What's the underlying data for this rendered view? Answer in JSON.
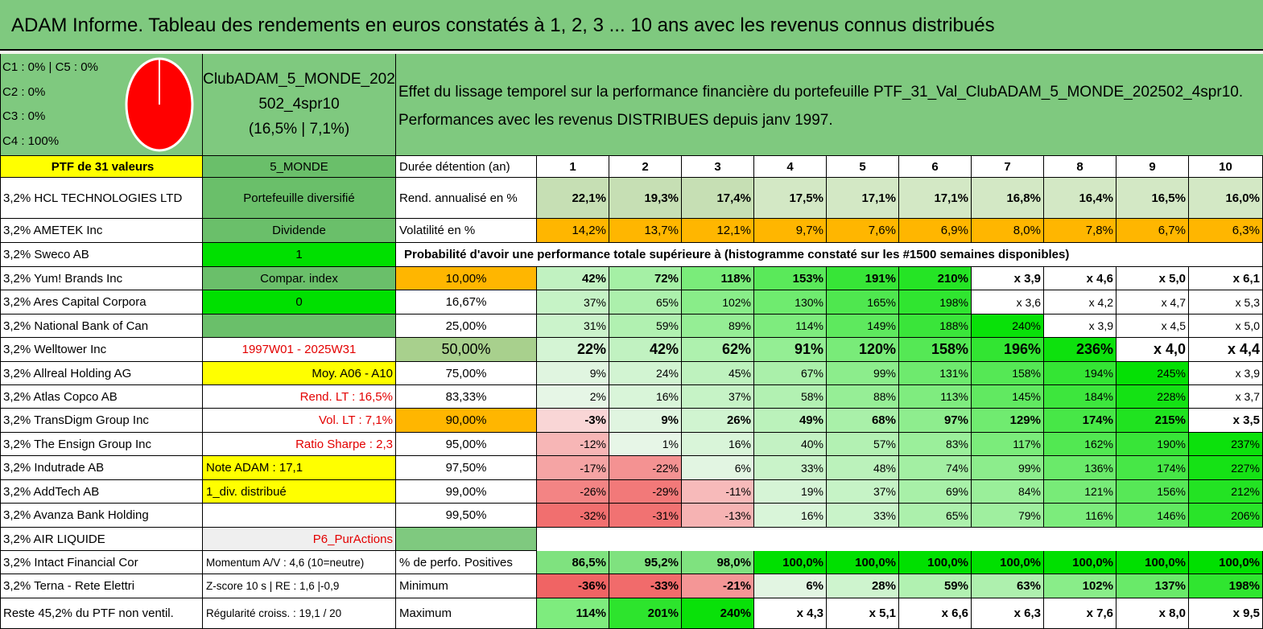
{
  "title": "ADAM Informe. Tableau des rendements en euros constatés à 1, 2, 3 ... 10 ans avec les revenus connus distribués",
  "allocation": [
    "C1 : 0% | C5 : 0%",
    "C2 : 0%",
    "C3 : 0%",
    "C4 : 100%"
  ],
  "pie": {
    "C4": 100,
    "color": "#ff0000"
  },
  "fund": {
    "line1": "ClubADAM_5_MONDE_202",
    "line2": "502_4spr10",
    "line3": "(16,5% | 7,1%)"
  },
  "description": {
    "line1": "Effet du lissage temporel sur la performance financière du portefeuille PTF_31_Val_ClubADAM_5_MONDE_202502_4spr10.",
    "line2": "Performances avec les revenus DISTRIBUES depuis janv 1997."
  },
  "holdings": [
    "PTF de 31 valeurs",
    "3,2% HCL TECHNOLOGIES LTD",
    "3,2% AMETEK Inc",
    "3,2% Sweco AB",
    "3,2% Yum! Brands Inc",
    "3,2% Ares Capital Corpora",
    "3,2% National Bank of Can",
    "3,2% Welltower Inc",
    "3,2% Allreal Holding AG",
    "3,2% Atlas Copco AB",
    "3,2% TransDigm Group Inc",
    "3,2% The Ensign Group Inc",
    "3,2% Indutrade AB",
    "3,2% AddTech AB",
    "3,2% Avanza Bank Holding",
    "3,2% AIR LIQUIDE",
    "3,2% Intact Financial Cor",
    "3,2% Terna - Rete Elettri",
    "Reste 45,2% du PTF non ventil."
  ],
  "details": [
    "5_MONDE",
    "Portefeuille diversifié",
    "Dividende",
    "1",
    "Compar. index",
    "0",
    "",
    "1997W01 - 2025W31",
    "Moy. A06 - A10",
    "Rend. LT : 16,5%",
    "Vol. LT : 7,1%",
    "Ratio Sharpe : 2,3",
    "Note ADAM : 17,1",
    "1_div. distribué",
    "",
    "P6_PurActions",
    "Momentum A/V : 4,6 (10=neutre)",
    "Z-score 10 s | RE : 1,6 |-0,9",
    "Régularité croiss. : 19,1 / 20"
  ],
  "header": {
    "label": "Durée détention (an)",
    "years": [
      "1",
      "2",
      "3",
      "4",
      "5",
      "6",
      "7",
      "8",
      "9",
      "10"
    ]
  },
  "rend": {
    "label": "Rend. annualisé en %",
    "values": [
      "22,1%",
      "19,3%",
      "17,4%",
      "17,5%",
      "17,1%",
      "17,1%",
      "16,8%",
      "16,4%",
      "16,5%",
      "16,0%"
    ]
  },
  "vol": {
    "label": "Volatilité en %",
    "values": [
      "14,2%",
      "13,7%",
      "12,1%",
      "9,7%",
      "7,6%",
      "6,9%",
      "8,0%",
      "7,8%",
      "6,7%",
      "6,3%"
    ]
  },
  "proba_title": "Probabilité d'avoir une performance totale supérieure à (histogramme constaté sur les #1500 semaines disponibles)",
  "proba_rows": [
    {
      "pct": "10,00%",
      "values": [
        "42%",
        "72%",
        "118%",
        "153%",
        "191%",
        "210%",
        "x 3,9",
        "x 4,6",
        "x 5,0",
        "x 6,1"
      ]
    },
    {
      "pct": "16,67%",
      "values": [
        "37%",
        "65%",
        "102%",
        "130%",
        "165%",
        "198%",
        "x 3,6",
        "x 4,2",
        "x 4,7",
        "x 5,3"
      ]
    },
    {
      "pct": "25,00%",
      "values": [
        "31%",
        "59%",
        "89%",
        "114%",
        "149%",
        "188%",
        "240%",
        "x 3,9",
        "x 4,5",
        "x 5,0"
      ]
    },
    {
      "pct": "50,00%",
      "values": [
        "22%",
        "42%",
        "62%",
        "91%",
        "120%",
        "158%",
        "196%",
        "236%",
        "x 4,0",
        "x 4,4"
      ]
    },
    {
      "pct": "75,00%",
      "values": [
        "9%",
        "24%",
        "45%",
        "67%",
        "99%",
        "131%",
        "158%",
        "194%",
        "245%",
        "x 3,9"
      ]
    },
    {
      "pct": "83,33%",
      "values": [
        "2%",
        "16%",
        "37%",
        "58%",
        "88%",
        "113%",
        "145%",
        "184%",
        "228%",
        "x 3,7"
      ]
    },
    {
      "pct": "90,00%",
      "values": [
        "-3%",
        "9%",
        "26%",
        "49%",
        "68%",
        "97%",
        "129%",
        "174%",
        "215%",
        "x 3,5"
      ]
    },
    {
      "pct": "95,00%",
      "values": [
        "-12%",
        "1%",
        "16%",
        "40%",
        "57%",
        "83%",
        "117%",
        "162%",
        "190%",
        "237%"
      ]
    },
    {
      "pct": "97,50%",
      "values": [
        "-17%",
        "-22%",
        "6%",
        "33%",
        "48%",
        "74%",
        "99%",
        "136%",
        "174%",
        "227%"
      ]
    },
    {
      "pct": "99,00%",
      "values": [
        "-26%",
        "-29%",
        "-11%",
        "19%",
        "37%",
        "69%",
        "84%",
        "121%",
        "156%",
        "212%"
      ]
    },
    {
      "pct": "99,50%",
      "values": [
        "-32%",
        "-31%",
        "-13%",
        "16%",
        "33%",
        "65%",
        "79%",
        "116%",
        "146%",
        "206%"
      ]
    }
  ],
  "positives": {
    "label": "% de perfo. Positives",
    "values": [
      "86,5%",
      "95,2%",
      "98,0%",
      "100,0%",
      "100,0%",
      "100,0%",
      "100,0%",
      "100,0%",
      "100,0%",
      "100,0%"
    ]
  },
  "minimum": {
    "label": "Minimum",
    "values": [
      "-36%",
      "-33%",
      "-21%",
      "6%",
      "28%",
      "59%",
      "63%",
      "102%",
      "137%",
      "198%"
    ]
  },
  "maximum": {
    "label": "Maximum",
    "values": [
      "114%",
      "201%",
      "240%",
      "x 4,3",
      "x 5,1",
      "x 6,6",
      "x 6,3",
      "x 7,6",
      "x 8,0",
      "x 9,5"
    ]
  }
}
